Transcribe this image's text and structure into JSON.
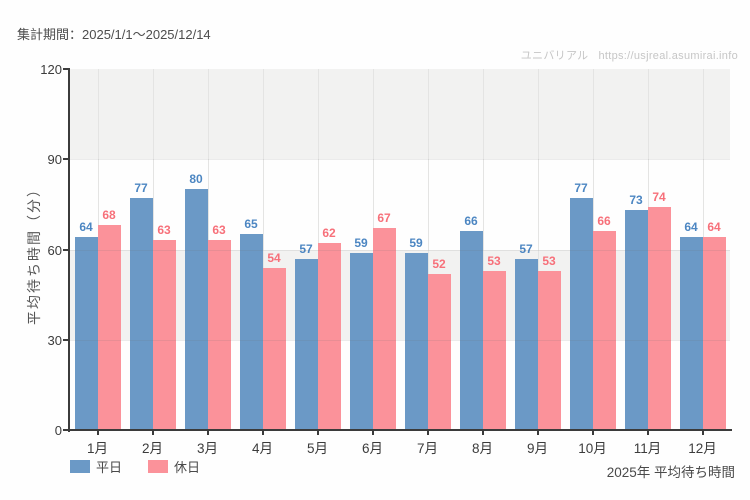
{
  "header": {
    "period_label": "集計期間：2025/1/1～2025/12/14"
  },
  "watermark": {
    "site": "ユニバリアル",
    "url": "https://usjreal.asumirai.info"
  },
  "footer": {
    "caption": "2025年 平均待ち時間"
  },
  "chart_data": {
    "type": "bar",
    "title": "2025年 平均待ち時間",
    "categories": [
      "1月",
      "2月",
      "3月",
      "4月",
      "5月",
      "6月",
      "7月",
      "8月",
      "9月",
      "10月",
      "11月",
      "12月"
    ],
    "series": [
      {
        "name": "平日",
        "color": "#6b99c6",
        "label_color": "#4c86c2",
        "values": [
          64,
          77,
          80,
          65,
          57,
          59,
          59,
          66,
          57,
          77,
          73,
          64
        ]
      },
      {
        "name": "休日",
        "color": "#fb929a",
        "label_color": "#f7707a",
        "values": [
          68,
          63,
          63,
          54,
          62,
          67,
          52,
          53,
          53,
          66,
          74,
          64
        ]
      }
    ],
    "xlabel": "",
    "ylabel": "平均待ち時間（分）",
    "ylim": [
      0,
      120
    ],
    "yticks": [
      0,
      30,
      60,
      90,
      120
    ],
    "shaded_bands": [
      [
        30,
        60
      ],
      [
        90,
        120
      ]
    ],
    "grid": "vertical-lines-at-category-centers",
    "legend_position": "bottom-left"
  }
}
